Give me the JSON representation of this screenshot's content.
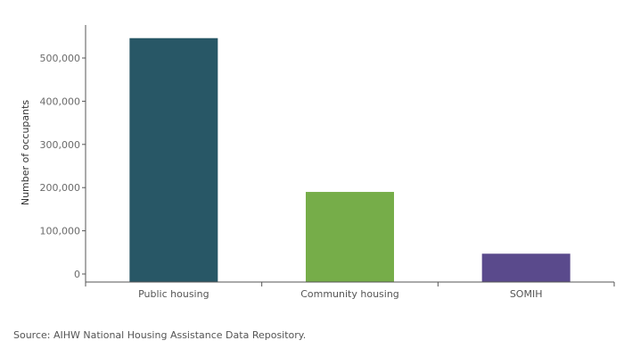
{
  "chart_data": {
    "type": "bar",
    "categories": [
      "Public housing",
      "Community housing",
      "SOMIH"
    ],
    "values": [
      546000,
      190000,
      47000
    ],
    "colors": [
      "#285766",
      "#76ad49",
      "#5a4a8c"
    ],
    "ylabel": "Number of occupants",
    "xlabel": "",
    "ylim": [
      0,
      570000
    ],
    "yticks": [
      0,
      100000,
      200000,
      300000,
      400000,
      500000
    ],
    "ytick_labels": [
      "0",
      "100,000",
      "200,000",
      "300,000",
      "400,000",
      "500,000"
    ],
    "grid": false
  },
  "footer": {
    "source": "Source: AIHW National Housing Assistance Data Repository."
  }
}
